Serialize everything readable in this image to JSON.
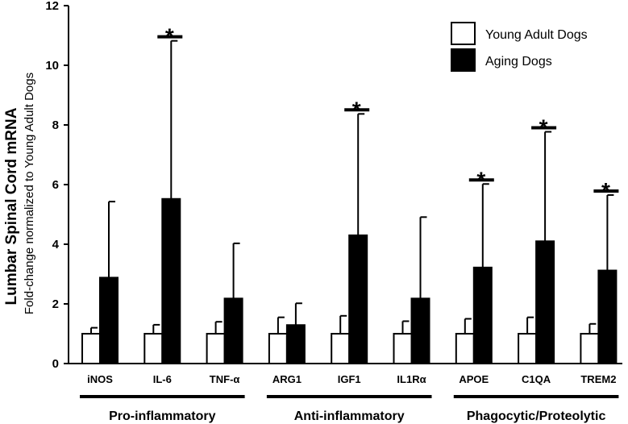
{
  "chart_data": {
    "type": "bar",
    "title": "",
    "ylabel": "Lumbar Spinal Cord mRNA",
    "ylabel_sub": "Fold-change normalized to Young Adult Dogs",
    "xlabel": "",
    "ylim": [
      0,
      12
    ],
    "yticks": [
      0,
      2,
      4,
      6,
      8,
      10,
      12
    ],
    "categories": [
      "iNOS",
      "IL-6",
      "TNF-α",
      "ARG1",
      "IGF1",
      "IL1Rα",
      "APOE",
      "C1QA",
      "TREM2"
    ],
    "series": [
      {
        "name": "Young Adult Dogs",
        "color": "#ffffff",
        "values": [
          1,
          1,
          1,
          1,
          1,
          1,
          1,
          1,
          1
        ],
        "error": [
          0.2,
          0.3,
          0.4,
          0.55,
          0.6,
          0.42,
          0.5,
          0.55,
          0.33
        ]
      },
      {
        "name": "Aging Dogs",
        "color": "#000000",
        "values": [
          2.88,
          5.52,
          2.18,
          1.29,
          4.3,
          2.18,
          3.22,
          4.1,
          3.12
        ],
        "error": [
          2.55,
          5.3,
          1.85,
          0.73,
          4.07,
          2.73,
          2.8,
          3.67,
          2.53
        ]
      }
    ],
    "significance": [
      {
        "category": "IL-6",
        "label": "*"
      },
      {
        "category": "IGF1",
        "label": "*"
      },
      {
        "category": "APOE",
        "label": "*"
      },
      {
        "category": "C1QA",
        "label": "*"
      },
      {
        "category": "TREM2",
        "label": "*"
      }
    ],
    "groups": [
      {
        "label": "Pro-inflammatory",
        "from": 0,
        "to": 2
      },
      {
        "label": "Anti-inflammatory",
        "from": 3,
        "to": 5
      },
      {
        "label": "Phagocytic/Proteolytic",
        "from": 6,
        "to": 8
      }
    ],
    "legend": {
      "position": "top-right",
      "items": [
        {
          "label": "Young Adult Dogs",
          "color": "#ffffff"
        },
        {
          "label": "Aging Dogs",
          "color": "#000000"
        }
      ]
    }
  }
}
